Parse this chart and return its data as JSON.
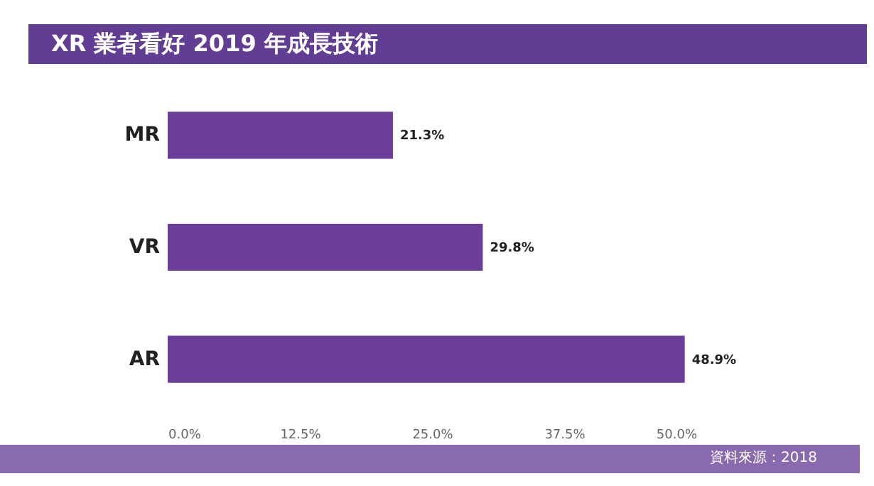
{
  "chart_data": {
    "type": "bar",
    "orientation": "horizontal",
    "title": "XR 業者看好 2019 年成長技術",
    "categories": [
      "MR",
      "VR",
      "AR"
    ],
    "values": [
      21.3,
      29.8,
      48.9
    ],
    "color": "#6a3d99",
    "value_labels": [
      "21.3%",
      "29.8%",
      "48.9%"
    ],
    "xlim": [
      0,
      50
    ],
    "xticks": [
      {
        "value": 0,
        "label": "0.0%"
      },
      {
        "value": 12.5,
        "label": "12.5%"
      },
      {
        "value": 25,
        "label": "25.0%"
      },
      {
        "value": 37.5,
        "label": "37.5%"
      },
      {
        "value": 50,
        "label": "50.0%"
      }
    ],
    "grid": false,
    "annotations": [
      "資料來源：2018"
    ]
  }
}
